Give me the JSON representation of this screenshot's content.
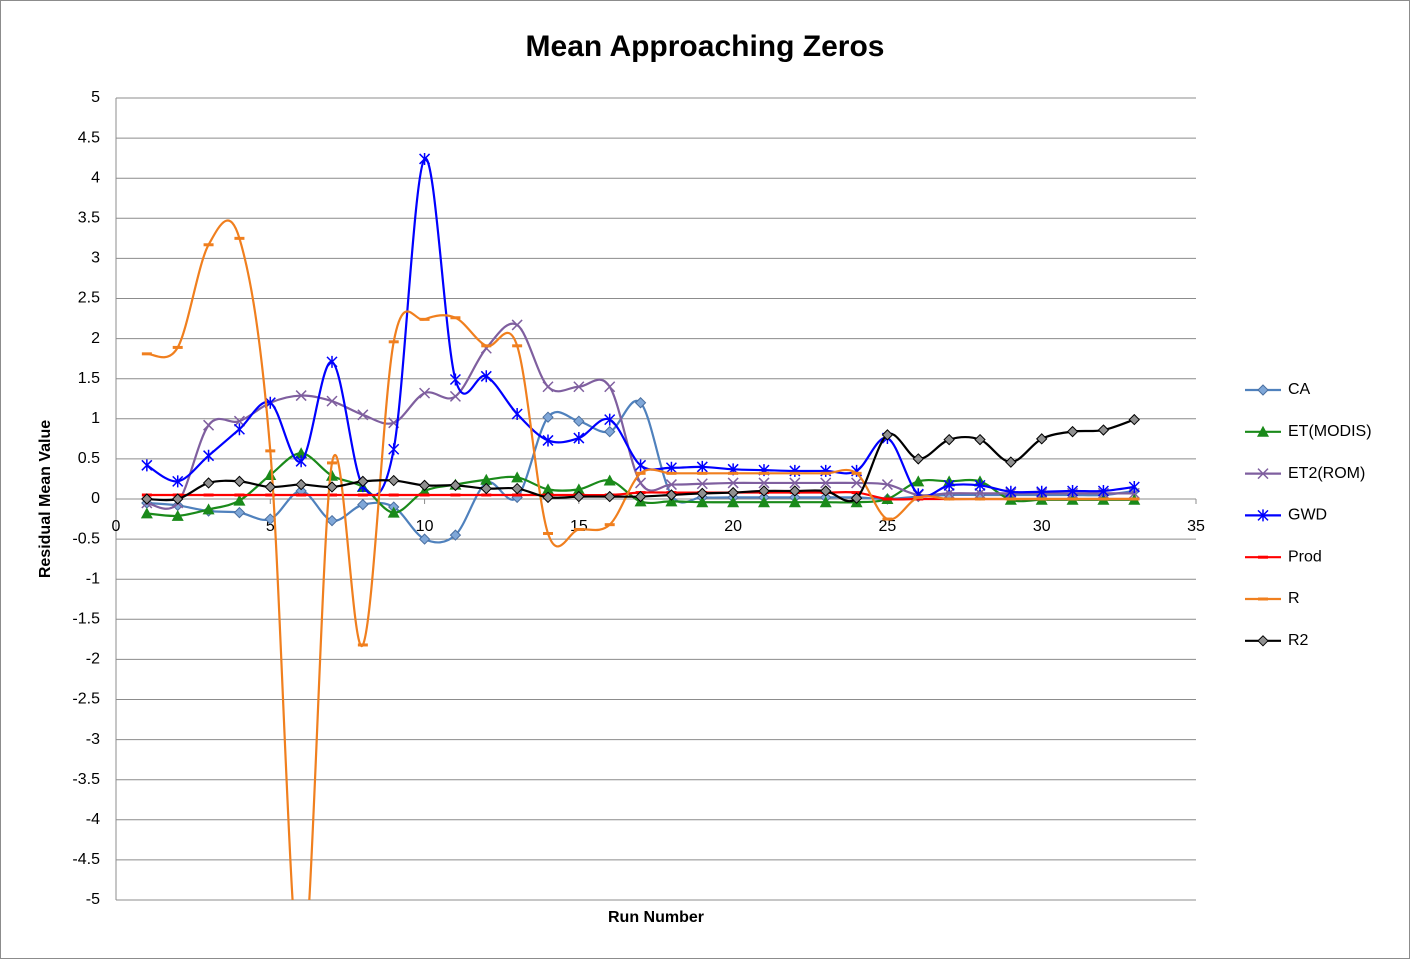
{
  "chart_data": {
    "type": "line",
    "title": "Mean Approaching Zeros",
    "x_label": "Run Number",
    "y_label": "Residual Mean Value",
    "x": [
      1,
      2,
      3,
      4,
      5,
      6,
      7,
      8,
      9,
      10,
      11,
      12,
      13,
      14,
      15,
      16,
      17,
      18,
      19,
      20,
      21,
      22,
      23,
      24,
      25,
      26,
      27,
      28,
      29,
      30,
      31,
      32,
      33
    ],
    "xlim": [
      0,
      35
    ],
    "xticks": [
      0,
      5,
      10,
      15,
      20,
      25,
      30,
      35
    ],
    "ylim": [
      -5,
      5
    ],
    "yticks": [
      -5,
      -4.5,
      -4,
      -3.5,
      -3,
      -2.5,
      -2,
      -1.5,
      -1,
      -0.5,
      0,
      0.5,
      1,
      1.5,
      2,
      2.5,
      3,
      3.5,
      4,
      4.5,
      5
    ],
    "grid": true,
    "smooth": true,
    "legend": "right",
    "series": [
      {
        "name": "CA",
        "color": "#4f81bd",
        "marker": "diamond",
        "marker_color": "#7fa7d8",
        "values": [
          -0.05,
          -0.08,
          -0.15,
          -0.17,
          -0.25,
          0.1,
          -0.27,
          -0.07,
          -0.1,
          -0.5,
          -0.45,
          0.2,
          0.02,
          1.02,
          0.97,
          0.84,
          1.2,
          0.05,
          0.02,
          0.02,
          0.02,
          0.02,
          0.02,
          0.02,
          0.0,
          0.03,
          0.05,
          0.05,
          0.05,
          0.05,
          0.05,
          0.05,
          0.1
        ]
      },
      {
        "name": "ET(MODIS)",
        "color": "#1a8a1a",
        "marker": "triangle",
        "marker_color": "#1a8a1a",
        "values": [
          -0.18,
          -0.21,
          -0.13,
          -0.02,
          0.3,
          0.57,
          0.29,
          0.15,
          -0.17,
          0.1,
          0.18,
          0.24,
          0.27,
          0.12,
          0.12,
          0.23,
          -0.03,
          -0.03,
          -0.04,
          -0.04,
          -0.04,
          -0.04,
          -0.04,
          -0.04,
          0.0,
          0.22,
          0.22,
          0.22,
          -0.01,
          -0.01,
          -0.01,
          -0.01,
          -0.01
        ]
      },
      {
        "name": "ET2(ROM)",
        "color": "#7f5f9f",
        "marker": "x",
        "marker_color": "#7f5f9f",
        "values": [
          -0.05,
          -0.05,
          0.92,
          0.97,
          1.2,
          1.29,
          1.22,
          1.05,
          0.95,
          1.32,
          1.28,
          1.88,
          2.17,
          1.4,
          1.4,
          1.4,
          0.2,
          0.18,
          0.19,
          0.2,
          0.2,
          0.2,
          0.2,
          0.2,
          0.18,
          0.05,
          0.07,
          0.07,
          0.07,
          0.07,
          0.07,
          0.07,
          0.07
        ]
      },
      {
        "name": "GWD",
        "color": "#0000ff",
        "marker": "asterisk",
        "marker_color": "#0000ff",
        "values": [
          0.42,
          0.22,
          0.54,
          0.87,
          1.2,
          0.47,
          1.71,
          0.16,
          0.62,
          4.24,
          1.49,
          1.53,
          1.06,
          0.73,
          0.76,
          0.99,
          0.42,
          0.39,
          0.4,
          0.37,
          0.36,
          0.35,
          0.35,
          0.35,
          0.76,
          0.06,
          0.17,
          0.17,
          0.09,
          0.09,
          0.1,
          0.1,
          0.15
        ]
      },
      {
        "name": "Prod",
        "color": "#ff0000",
        "marker": "dash",
        "marker_color": "#ff0000",
        "values": [
          0.05,
          0.05,
          0.05,
          0.05,
          0.05,
          0.05,
          0.05,
          0.05,
          0.05,
          0.05,
          0.05,
          0.05,
          0.05,
          0.05,
          0.05,
          0.05,
          0.08,
          0.08,
          0.08,
          0.08,
          0.08,
          0.08,
          0.08,
          0.08,
          0.0,
          0.0,
          0.0,
          0.0,
          0.0,
          0.0,
          0.0,
          0.0,
          0.0
        ]
      },
      {
        "name": "R",
        "color": "#f07f1e",
        "marker": "dash",
        "marker_color": "#f07f1e",
        "values": [
          1.81,
          1.89,
          3.17,
          3.25,
          0.6,
          -6.0,
          0.45,
          -1.82,
          1.96,
          2.24,
          2.26,
          1.91,
          1.91,
          -0.43,
          -0.38,
          -0.32,
          0.32,
          0.32,
          0.32,
          0.32,
          0.32,
          0.32,
          0.32,
          0.32,
          -0.25,
          0.02,
          0.0,
          0.0,
          0.0,
          0.0,
          0.0,
          0.0,
          0.0
        ]
      },
      {
        "name": "R2",
        "color": "#000000",
        "marker": "diamond",
        "marker_color": "#909090",
        "values": [
          0.0,
          0.0,
          0.2,
          0.22,
          0.15,
          0.18,
          0.15,
          0.22,
          0.23,
          0.17,
          0.17,
          0.13,
          0.13,
          0.02,
          0.03,
          0.03,
          0.03,
          0.05,
          0.07,
          0.08,
          0.1,
          0.1,
          0.1,
          0.01,
          0.8,
          0.5,
          0.74,
          0.74,
          0.46,
          0.75,
          0.84,
          0.86,
          0.99
        ]
      }
    ]
  }
}
